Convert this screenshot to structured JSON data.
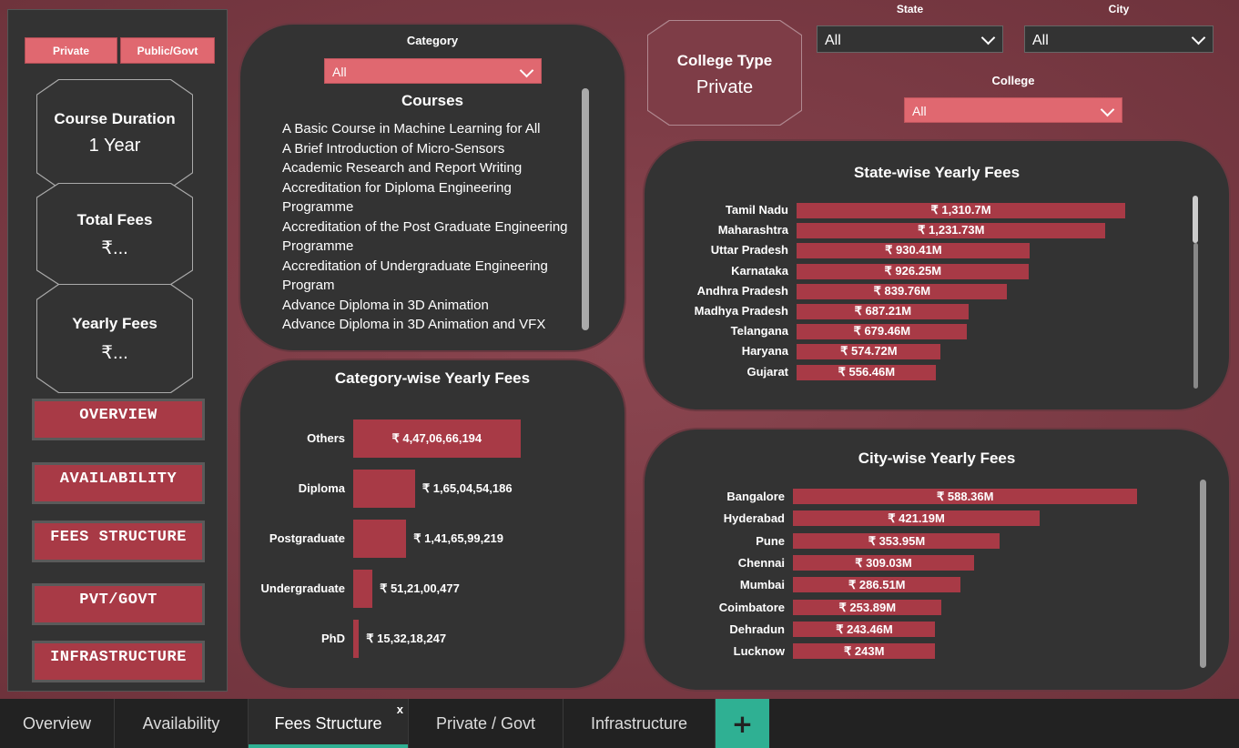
{
  "filters": {
    "type_buttons": [
      "Private",
      "Public/Govt"
    ],
    "category": {
      "label": "Category",
      "value": "All"
    },
    "state": {
      "label": "State",
      "value": "All"
    },
    "city": {
      "label": "City",
      "value": "All"
    },
    "college": {
      "label": "College",
      "value": "All"
    }
  },
  "cards": {
    "course_duration": {
      "title": "Course Duration",
      "value": "1 Year"
    },
    "total_fees": {
      "title": "Total Fees",
      "value": "₹..."
    },
    "yearly_fees": {
      "title": "Yearly Fees",
      "value": "₹..."
    },
    "college_type": {
      "title": "College Type",
      "value": "Private"
    }
  },
  "nav": [
    "OVERVIEW",
    "AVAILABILITY",
    "FEES STRUCTURE",
    "PVT/GOVT",
    "INFRASTRUCTURE"
  ],
  "courses": {
    "title": "Courses",
    "items": [
      "A Basic Course in Machine Learning for All",
      "A Brief Introduction of Micro-Sensors",
      "Academic Research and Report Writing",
      "Accreditation for Diploma Engineering Programme",
      "Accreditation of the Post Graduate Engineering Programme",
      "Accreditation of Undergraduate Engineering Program",
      "Advance Diploma in 3D Animation",
      "Advance Diploma in 3D Animation and VFX"
    ]
  },
  "colors": {
    "accent": "#a83a46",
    "filter": "#e06870",
    "panel": "#333333",
    "tab_active": "#2fb093"
  },
  "chart_data": [
    {
      "type": "bar",
      "title": "Category-wise Yearly Fees",
      "categories": [
        "Others",
        "Diploma",
        "Postgraduate",
        "Undergraduate",
        "PhD"
      ],
      "values": [
        4470666194,
        1650454186,
        1416599219,
        512100477,
        153218247
      ],
      "labels": [
        "₹ 4,47,06,66,194",
        "₹ 1,65,04,54,186",
        "₹ 1,41,65,99,219",
        "₹ 51,21,00,477",
        "₹ 15,32,18,247"
      ]
    },
    {
      "type": "bar",
      "title": "State-wise Yearly Fees",
      "categories": [
        "Tamil Nadu",
        "Maharashtra",
        "Uttar Pradesh",
        "Karnataka",
        "Andhra Pradesh",
        "Madhya Pradesh",
        "Telangana",
        "Haryana",
        "Gujarat"
      ],
      "values": [
        1310.7,
        1231.73,
        930.41,
        926.25,
        839.76,
        687.21,
        679.46,
        574.72,
        556.46
      ],
      "labels": [
        "₹ 1,310.7M",
        "₹ 1,231.73M",
        "₹ 930.41M",
        "₹ 926.25M",
        "₹ 839.76M",
        "₹ 687.21M",
        "₹ 679.46M",
        "₹ 574.72M",
        "₹ 556.46M"
      ]
    },
    {
      "type": "bar",
      "title": "City-wise Yearly Fees",
      "categories": [
        "Bangalore",
        "Hyderabad",
        "Pune",
        "Chennai",
        "Mumbai",
        "Coimbatore",
        "Dehradun",
        "Lucknow"
      ],
      "values": [
        588.36,
        421.19,
        353.95,
        309.03,
        286.51,
        253.89,
        243.46,
        243
      ],
      "labels": [
        "₹ 588.36M",
        "₹ 421.19M",
        "₹ 353.95M",
        "₹ 309.03M",
        "₹ 286.51M",
        "₹ 253.89M",
        "₹ 243.46M",
        "₹ 243M"
      ]
    }
  ],
  "tabs": {
    "items": [
      "Overview",
      "Availability",
      "Fees Structure",
      "Private / Govt",
      "Infrastructure"
    ],
    "active": 2,
    "close_glyph": "x",
    "add_glyph": "+"
  }
}
